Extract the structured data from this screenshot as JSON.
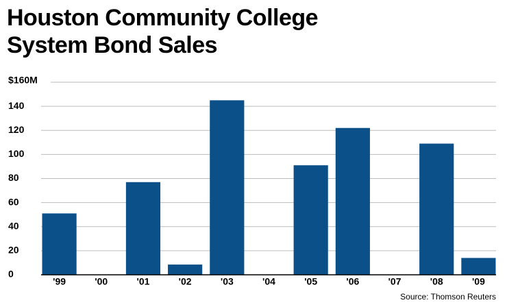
{
  "chart_data": {
    "type": "bar",
    "title": "Houston Community College System Bond Sales",
    "categories": [
      "'99",
      "'00",
      "'01",
      "'02",
      "'03",
      "'04",
      "'05",
      "'06",
      "'07",
      "'08",
      "'09"
    ],
    "values": [
      51,
      0,
      77,
      8.5,
      145,
      0,
      91,
      122,
      0,
      109,
      14
    ],
    "color": "#0b5089",
    "ylim": [
      0,
      160
    ],
    "yticks": [
      0,
      20,
      40,
      60,
      80,
      100,
      120,
      140,
      {
        "value": 160,
        "label": "$160M"
      }
    ],
    "grid": true,
    "source": "Source: Thomson Reuters"
  }
}
